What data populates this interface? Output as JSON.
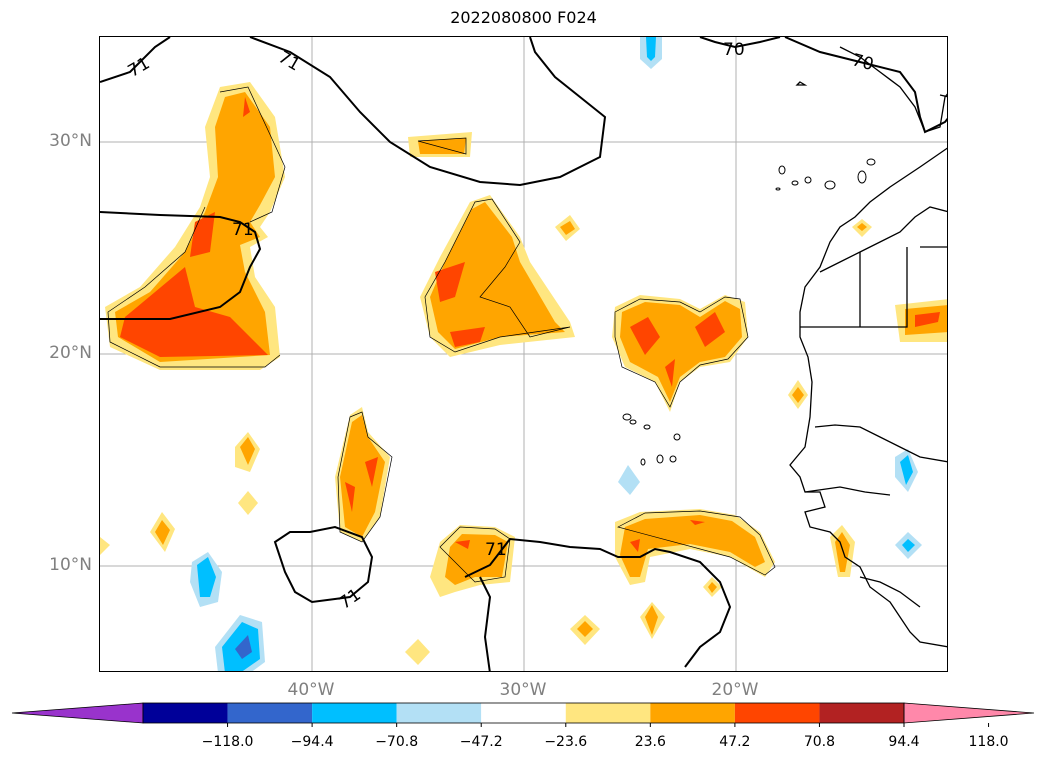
{
  "title": "2022080800 F024",
  "lat_labels": [
    "30°N",
    "20°N",
    "10°N"
  ],
  "lon_labels": [
    "40°W",
    "30°W",
    "20°W"
  ],
  "contour_labels": [
    "71",
    "71",
    "71",
    "70",
    "70",
    "71",
    "71"
  ],
  "colorbar": {
    "ticks": [
      "−118.0",
      "−94.4",
      "−70.8",
      "−47.2",
      "−23.6",
      "23.6",
      "47.2",
      "70.8",
      "94.4",
      "118.0"
    ],
    "colors": [
      "#9933cc",
      "#000099",
      "#3366cc",
      "#00bfff",
      "#b3e0f5",
      "#ffffff",
      "#ffe680",
      "#ffa500",
      "#ff4500",
      "#b22222",
      "#ff88aa"
    ]
  },
  "palette": {
    "light_yellow": "#ffe680",
    "orange": "#ffa500",
    "red_orange": "#ff4500",
    "light_blue": "#b3e0f5",
    "deep_sky_blue": "#00bfff",
    "royal_blue": "#3366cc"
  }
}
